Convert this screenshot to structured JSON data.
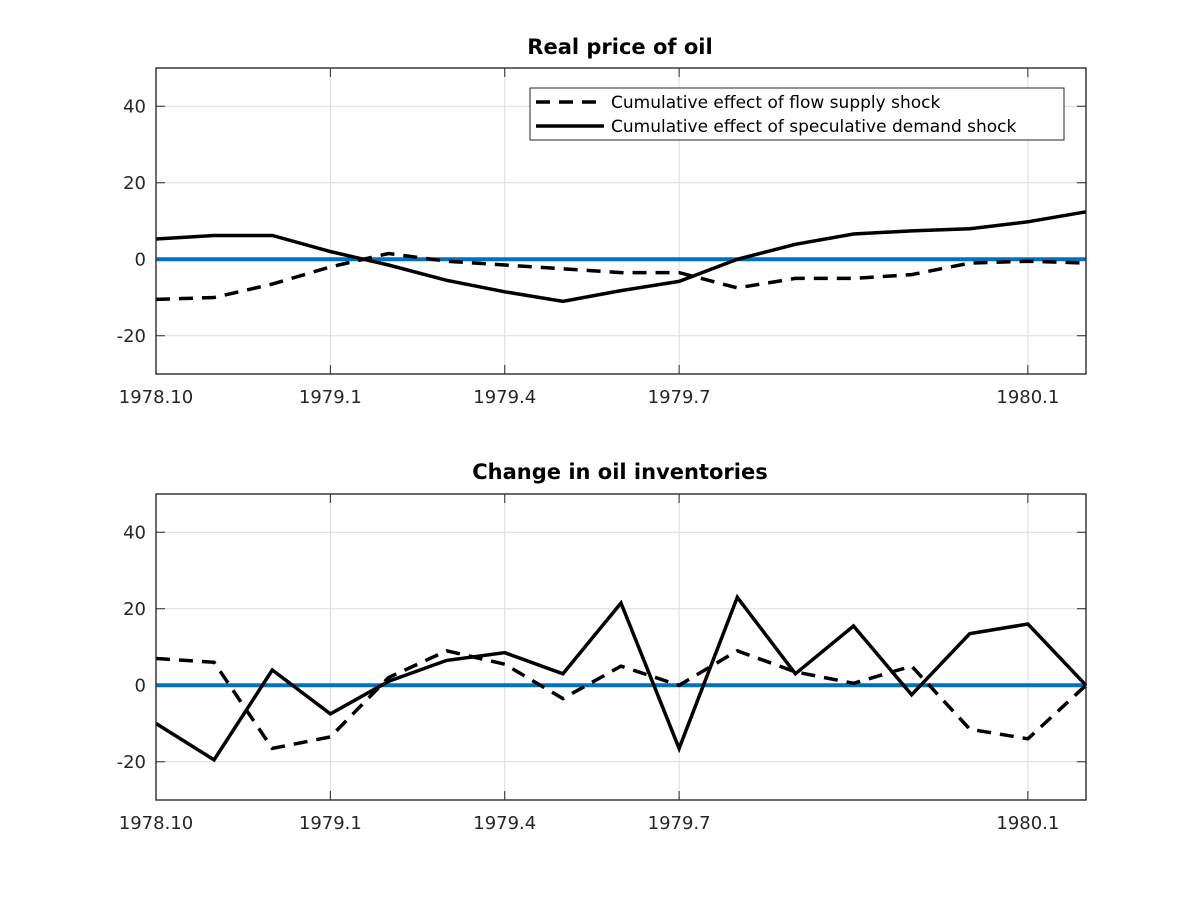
{
  "colors": {
    "supply_series": "#000000",
    "speculative_series": "#000000",
    "zero_line": "#0072bd",
    "grid": "#dcdcdc",
    "axes": "#262626"
  },
  "chart_data": [
    {
      "type": "line",
      "title": "Real price of oil",
      "xlabel": "",
      "ylabel": "",
      "x": [
        0,
        1,
        2,
        3,
        4,
        5,
        6,
        7,
        8,
        9,
        10,
        11,
        12,
        13,
        14,
        15,
        16
      ],
      "xlim": [
        0,
        16
      ],
      "ylim": [
        -30,
        50
      ],
      "x_ticks": [
        {
          "pos": 0,
          "label": "1978.10"
        },
        {
          "pos": 3,
          "label": "1979.1"
        },
        {
          "pos": 6,
          "label": "1979.4"
        },
        {
          "pos": 9,
          "label": "1979.7"
        },
        {
          "pos": 15,
          "label": "1980.1"
        }
      ],
      "y_ticks": [
        {
          "value": -20,
          "label": "-20"
        },
        {
          "value": 0,
          "label": "0"
        },
        {
          "value": 20,
          "label": "20"
        },
        {
          "value": 40,
          "label": "40"
        }
      ],
      "grid": true,
      "legend": {
        "placement": "top-right",
        "entries": [
          "Cumulative effect of flow supply shock",
          "Cumulative effect of speculative demand shock"
        ]
      },
      "series": [
        {
          "name": "Cumulative effect of flow supply shock",
          "style": "dashed",
          "values": [
            -10.5,
            -10,
            -6.5,
            -2,
            1.5,
            -0.5,
            -1.5,
            -2.5,
            -3.5,
            -3.5,
            -7.5,
            -5,
            -5,
            -4,
            -1,
            -0.5,
            -1
          ]
        },
        {
          "name": "Cumulative effect of speculative demand shock",
          "style": "solid",
          "values": [
            5.3,
            6.2,
            6.2,
            2,
            -1.5,
            -5.5,
            -8.5,
            -11,
            -8.2,
            -5.8,
            0,
            3.9,
            6.6,
            7.4,
            8,
            9.8,
            12.4
          ]
        }
      ],
      "reference_line": 0
    },
    {
      "type": "line",
      "title": "Change in oil inventories",
      "xlabel": "",
      "ylabel": "",
      "x": [
        0,
        1,
        2,
        3,
        4,
        5,
        6,
        7,
        8,
        9,
        10,
        11,
        12,
        13,
        14,
        15,
        16
      ],
      "xlim": [
        0,
        16
      ],
      "ylim": [
        -30,
        50
      ],
      "x_ticks": [
        {
          "pos": 0,
          "label": "1978.10"
        },
        {
          "pos": 3,
          "label": "1979.1"
        },
        {
          "pos": 6,
          "label": "1979.4"
        },
        {
          "pos": 9,
          "label": "1979.7"
        },
        {
          "pos": 15,
          "label": "1980.1"
        }
      ],
      "y_ticks": [
        {
          "value": -20,
          "label": "-20"
        },
        {
          "value": 0,
          "label": "0"
        },
        {
          "value": 20,
          "label": "20"
        },
        {
          "value": 40,
          "label": "40"
        }
      ],
      "grid": true,
      "series": [
        {
          "name": "Cumulative effect of flow supply shock",
          "style": "dashed",
          "values": [
            7,
            6,
            -16.5,
            -13.5,
            2,
            9,
            5.5,
            -3.5,
            5,
            0,
            9,
            3.5,
            0.5,
            5,
            -11.5,
            -14,
            0
          ]
        },
        {
          "name": "Cumulative effect of speculative demand shock",
          "style": "solid",
          "values": [
            -10,
            -19.5,
            4,
            -7.5,
            1,
            6.5,
            8.5,
            3,
            21.5,
            -16.5,
            23,
            3,
            15.5,
            -2.5,
            13.5,
            16,
            0
          ]
        }
      ],
      "reference_line": 0
    }
  ]
}
